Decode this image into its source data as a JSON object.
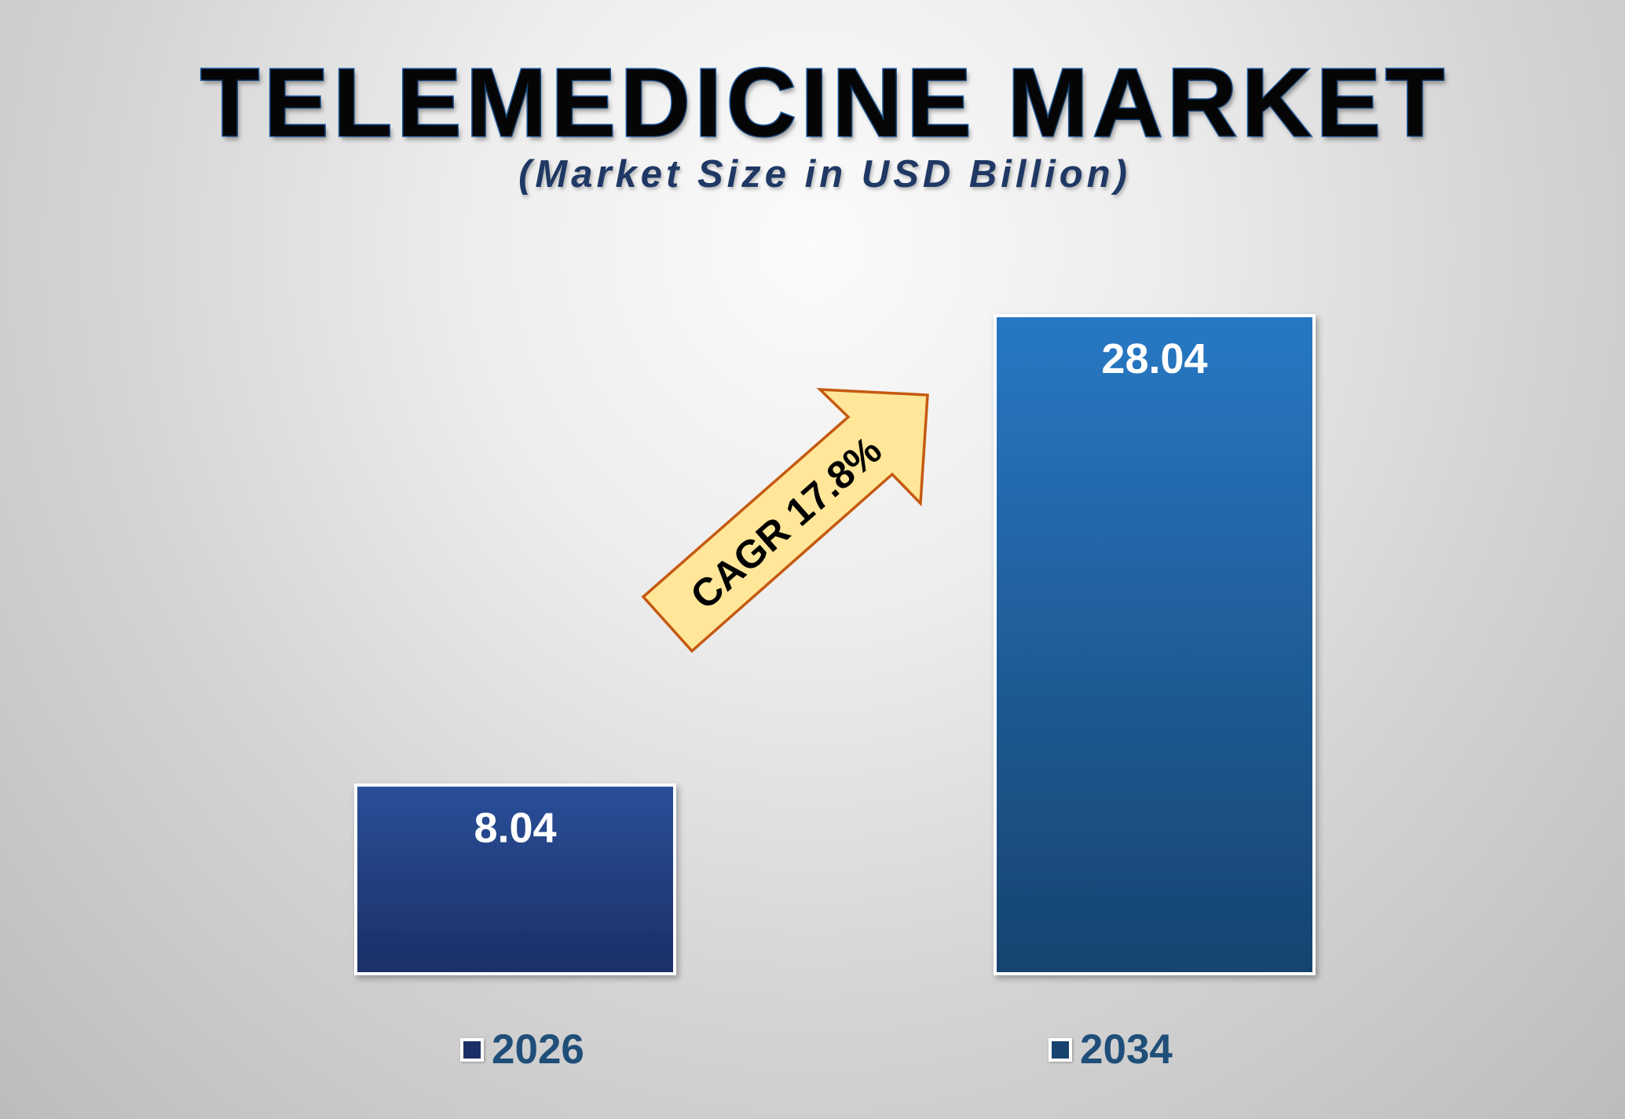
{
  "title": "TELEMEDICINE MARKET",
  "subtitle": "(Market Size in USD Billion)",
  "annotation": {
    "text": "CAGR 17.8%",
    "fill_color": "#ffe699",
    "stroke_color": "#c55a11"
  },
  "colors": {
    "bar_2026_top": "#2a4f99",
    "bar_2026_bottom": "#1c2f66",
    "bar_2034_top": "#2878c4",
    "bar_2034_bottom": "#17436f",
    "legend_text": "#1f4e79",
    "title_outline": "#1f5fa8"
  },
  "chart_data": {
    "type": "bar",
    "title": "TELEMEDICINE MARKET",
    "subtitle": "(Market Size in USD Billion)",
    "categories": [
      "2026",
      "2034"
    ],
    "values": [
      8.04,
      28.04
    ],
    "data_labels": [
      "8.04",
      "28.04"
    ],
    "legend": [
      "2026",
      "2034"
    ],
    "legend_position": "bottom",
    "grid": false,
    "ylim": [
      0,
      30
    ],
    "annotations": [
      "CAGR 17.8%"
    ]
  }
}
